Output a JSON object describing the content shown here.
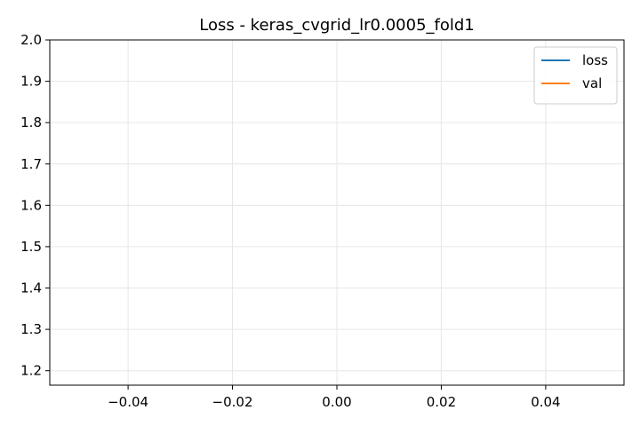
{
  "chart_data": {
    "type": "line",
    "title": "Loss - keras_cvgrid_lr0.0005_fold1",
    "xlabel": "",
    "ylabel": "",
    "xlim": [
      -0.055,
      0.055
    ],
    "ylim": [
      1.165,
      2.0
    ],
    "xticks": [
      -0.04,
      -0.02,
      0.0,
      0.02,
      0.04
    ],
    "xtick_labels": [
      "−0.04",
      "−0.02",
      "0.00",
      "0.02",
      "0.04"
    ],
    "yticks": [
      1.2,
      1.3,
      1.4,
      1.5,
      1.6,
      1.7,
      1.8,
      1.9,
      2.0
    ],
    "ytick_labels": [
      "1.2",
      "1.3",
      "1.4",
      "1.5",
      "1.6",
      "1.7",
      "1.8",
      "1.9",
      "2.0"
    ],
    "grid": true,
    "legend_position": "top-right",
    "series": [
      {
        "name": "loss",
        "color": "#1f77b4",
        "x": [],
        "y": []
      },
      {
        "name": "val",
        "color": "#ff7f0e",
        "x": [],
        "y": []
      }
    ]
  }
}
